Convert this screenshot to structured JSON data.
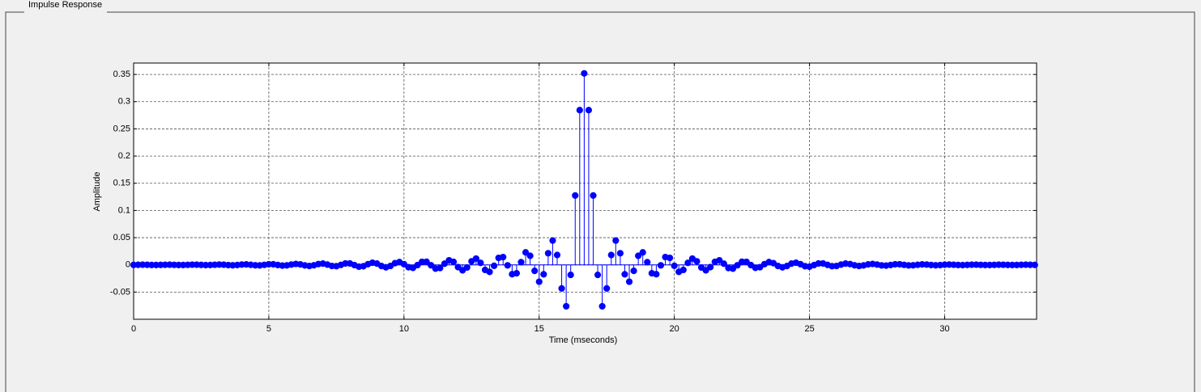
{
  "panel": {
    "title": "Impulse Response"
  },
  "chart_data": {
    "type": "stem",
    "xlabel": "Time (mseconds)",
    "ylabel": "Amplitude",
    "color": "#0000ff",
    "grid": true,
    "xlim": [
      0,
      33.4
    ],
    "ylim": [
      -0.1,
      0.371
    ],
    "xticks": [
      0,
      5,
      10,
      15,
      20,
      25,
      30
    ],
    "yticks": [
      -0.05,
      0,
      0.05,
      0.1,
      0.15,
      0.2,
      0.25,
      0.3,
      0.35
    ],
    "x": [
      0,
      0.1667,
      0.3333,
      0.5,
      0.6667,
      0.8333,
      1,
      1.1667,
      1.3333,
      1.5,
      1.6667,
      1.8333,
      2,
      2.1667,
      2.3333,
      2.5,
      2.6667,
      2.8333,
      3,
      3.1667,
      3.3333,
      3.5,
      3.6667,
      3.8333,
      4,
      4.1667,
      4.3333,
      4.5,
      4.6667,
      4.8333,
      5,
      5.1667,
      5.3333,
      5.5,
      5.6667,
      5.8333,
      6,
      6.1667,
      6.3333,
      6.5,
      6.6667,
      6.8333,
      7,
      7.1667,
      7.3333,
      7.5,
      7.6667,
      7.8333,
      8,
      8.1667,
      8.3333,
      8.5,
      8.6667,
      8.8333,
      9,
      9.1667,
      9.3333,
      9.5,
      9.6667,
      9.8333,
      10,
      10.1667,
      10.3333,
      10.5,
      10.6667,
      10.8333,
      11,
      11.1667,
      11.3333,
      11.5,
      11.6667,
      11.8333,
      12,
      12.1667,
      12.3333,
      12.5,
      12.6667,
      12.8333,
      13,
      13.1667,
      13.3333,
      13.5,
      13.6667,
      13.8333,
      14,
      14.1667,
      14.3333,
      14.5,
      14.6667,
      14.8333,
      15,
      15.1667,
      15.3333,
      15.5,
      15.6667,
      15.8333,
      16,
      16.1667,
      16.3333,
      16.5,
      16.6667,
      16.8333,
      17,
      17.1667,
      17.3333,
      17.5,
      17.6667,
      17.8333,
      18,
      18.1667,
      18.3333,
      18.5,
      18.6667,
      18.8333,
      19,
      19.1667,
      19.3333,
      19.5,
      19.6667,
      19.8333,
      20,
      20.1667,
      20.3333,
      20.5,
      20.6667,
      20.8333,
      21,
      21.1667,
      21.3333,
      21.5,
      21.6667,
      21.8333,
      22,
      22.1667,
      22.3333,
      22.5,
      22.6667,
      22.8333,
      23,
      23.1667,
      23.3333,
      23.5,
      23.6667,
      23.8333,
      24,
      24.1667,
      24.3333,
      24.5,
      24.6667,
      24.8333,
      25,
      25.1667,
      25.3333,
      25.5,
      25.6667,
      25.8333,
      26,
      26.1667,
      26.3333,
      26.5,
      26.6667,
      26.8333,
      27,
      27.1667,
      27.3333,
      27.5,
      27.6667,
      27.8333,
      28,
      28.1667,
      28.3333,
      28.5,
      28.6667,
      28.8333,
      29,
      29.1667,
      29.3333,
      29.5,
      29.6667,
      29.8333,
      30,
      30.1667,
      30.3333,
      30.5,
      30.6667,
      30.8333,
      31,
      31.1667,
      31.3333,
      31.5,
      31.6667,
      31.8333,
      32,
      32.1667,
      32.3333,
      32.5,
      32.6667,
      32.8333,
      33,
      33.1667,
      33.3333
    ],
    "values": [
      -0.0001,
      0.0001,
      0.0003,
      0.0001,
      -0.0002,
      -0.0003,
      -0.0001,
      0.0002,
      0.0003,
      0,
      -0.0003,
      -0.0003,
      0,
      0.0004,
      0.0003,
      -0.0001,
      -0.0005,
      -0.0003,
      0.0002,
      0.0006,
      0.0003,
      -0.0004,
      -0.0008,
      -0.0003,
      0.0006,
      0.0009,
      0.0001,
      -0.0008,
      -0.001,
      0,
      0.0011,
      0.001,
      -0.0003,
      -0.0014,
      -0.001,
      0.0006,
      0.0017,
      0.0009,
      -0.001,
      -0.002,
      -0.0008,
      0.0015,
      0.0023,
      0.0005,
      -0.002,
      -0.0024,
      -0.0001,
      0.0026,
      0.0026,
      -0.0005,
      -0.0033,
      -0.0025,
      0.0012,
      0.0039,
      0.0023,
      -0.0021,
      -0.0045,
      -0.002,
      0.0031,
      0.0051,
      0.0013,
      -0.0043,
      -0.0055,
      -0.0005,
      0.0056,
      0.0057,
      -0.0007,
      -0.007,
      -0.0058,
      0.0022,
      0.0084,
      0.0055,
      -0.0042,
      -0.01,
      -0.0048,
      0.0065,
      0.0115,
      0.0036,
      -0.0093,
      -0.0129,
      -0.0018,
      0.0128,
      0.0143,
      -0.0009,
      -0.0172,
      -0.0155,
      0.0049,
      0.0229,
      0.0166,
      -0.011,
      -0.031,
      -0.0174,
      0.0214,
      0.0447,
      0.0181,
      -0.0433,
      -0.0761,
      -0.0185,
      0.1275,
      0.2845,
      0.352,
      0.2845,
      0.1275,
      -0.0185,
      -0.0761,
      -0.0433,
      0.0181,
      0.0447,
      0.0214,
      -0.0174,
      -0.031,
      -0.011,
      0.0166,
      0.0229,
      0.0049,
      -0.0155,
      -0.0172,
      -0.0009,
      0.0143,
      0.0128,
      -0.0018,
      -0.0129,
      -0.0093,
      0.0036,
      0.0115,
      0.0065,
      -0.0048,
      -0.01,
      -0.0042,
      0.0055,
      0.0084,
      0.0022,
      -0.0058,
      -0.007,
      -0.0007,
      0.0057,
      0.0056,
      -0.0005,
      -0.0055,
      -0.0043,
      0.0013,
      0.0051,
      0.0031,
      -0.002,
      -0.0045,
      -0.0021,
      0.0023,
      0.0039,
      0.0012,
      -0.0025,
      -0.0033,
      -0.0005,
      0.0026,
      0.0026,
      -0.0001,
      -0.0024,
      -0.002,
      0.0005,
      0.0023,
      0.0015,
      -0.0008,
      -0.002,
      -0.001,
      0.0009,
      0.0017,
      0.0006,
      -0.001,
      -0.0014,
      -0.0003,
      0.001,
      0.0011,
      0,
      -0.001,
      -0.0008,
      0.0001,
      0.0009,
      0.0006,
      -0.0003,
      -0.0008,
      -0.0004,
      0.0003,
      0.0006,
      0.0002,
      -0.0003,
      -0.0005,
      -0.0001,
      0.0003,
      0.0004,
      0,
      -0.0003,
      -0.0003,
      0,
      0.0003,
      0.0002,
      -0.0001,
      -0.0003,
      -0.0002,
      0.0001,
      0.0003,
      0.0001,
      -0.0001
    ]
  }
}
